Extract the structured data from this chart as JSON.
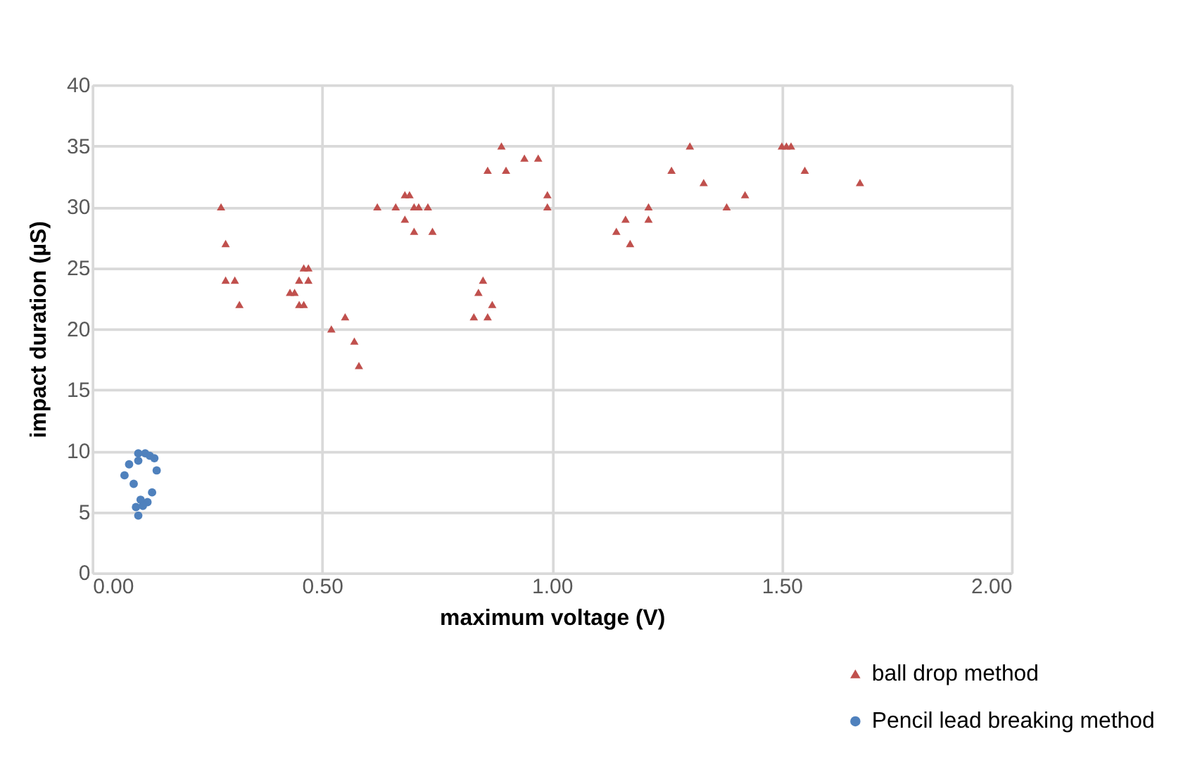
{
  "chart_data": {
    "type": "scatter",
    "xlabel": "maximum voltage (V)",
    "ylabel": "impact duration (µS)",
    "xlim": [
      0,
      2
    ],
    "ylim": [
      0,
      40
    ],
    "xticks": [
      {
        "value": 0,
        "label": "0.00"
      },
      {
        "value": 0.5,
        "label": "0.50"
      },
      {
        "value": 1,
        "label": "1.00"
      },
      {
        "value": 1.5,
        "label": "1.50"
      },
      {
        "value": 2,
        "label": "2.00"
      }
    ],
    "yticks": [
      0,
      5,
      10,
      15,
      20,
      25,
      30,
      35,
      40
    ],
    "grid": true,
    "legend": "bottom right",
    "series": [
      {
        "name": "ball drop method",
        "color": "#c0504d",
        "marker": "triangle",
        "x": [
          0.28,
          0.29,
          0.29,
          0.31,
          0.32,
          0.43,
          0.44,
          0.45,
          0.46,
          0.45,
          0.46,
          0.47,
          0.47,
          0.52,
          0.55,
          0.57,
          0.58,
          0.62,
          0.66,
          0.68,
          0.68,
          0.69,
          0.7,
          0.7,
          0.71,
          0.73,
          0.74,
          0.83,
          0.84,
          0.85,
          0.86,
          0.87,
          0.86,
          0.89,
          0.9,
          0.94,
          0.97,
          0.99,
          0.99,
          1.14,
          1.16,
          1.17,
          1.21,
          1.21,
          1.26,
          1.3,
          1.33,
          1.38,
          1.42,
          1.5,
          1.51,
          1.52,
          1.55,
          1.67
        ],
        "values": [
          30,
          27,
          24,
          24,
          22,
          23,
          23,
          22,
          22,
          24,
          25,
          25,
          24,
          20,
          21,
          19,
          17,
          30,
          30,
          29,
          31,
          31,
          28,
          30,
          30,
          30,
          28,
          21,
          23,
          24,
          21,
          22,
          33,
          35,
          33,
          34,
          34,
          31,
          30,
          28,
          29,
          27,
          30,
          29,
          33,
          35,
          32,
          30,
          31,
          35,
          35,
          35,
          33,
          32
        ]
      },
      {
        "name": "Pencil lead breaking method",
        "color": "#4f81bd",
        "marker": "circle",
        "x": [
          0.1,
          0.115,
          0.125,
          0.135,
          0.1,
          0.08,
          0.07,
          0.14,
          0.09,
          0.13,
          0.12,
          0.105,
          0.095,
          0.1,
          0.11
        ],
        "values": [
          9.8,
          9.8,
          9.6,
          9.4,
          9.2,
          8.9,
          8.0,
          8.4,
          7.3,
          6.6,
          5.8,
          6.0,
          5.4,
          4.7,
          5.5
        ]
      }
    ]
  }
}
